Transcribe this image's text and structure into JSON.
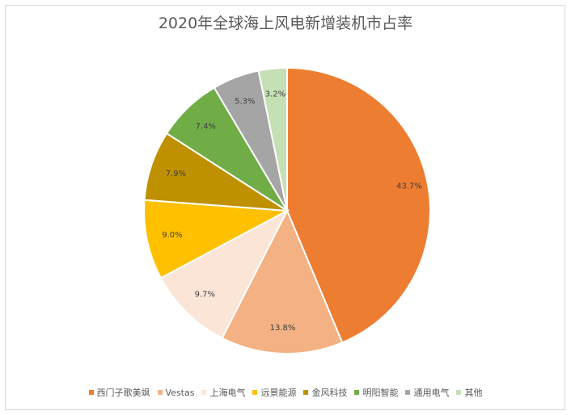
{
  "chart_data": {
    "type": "pie",
    "title": "2020年全球海上风电新增装机市占率",
    "categories": [
      "西门子歌美飒",
      "Vestas",
      "上海电气",
      "远景能源",
      "金风科技",
      "明阳智能",
      "通用电气",
      "其他"
    ],
    "values": [
      43.7,
      13.8,
      9.7,
      9.0,
      7.9,
      7.4,
      5.3,
      3.2
    ],
    "data_labels": [
      "43.7%",
      "13.8%",
      "9.7%",
      "9.0%",
      "7.9%",
      "7.4%",
      "5.3%",
      "3.2%"
    ],
    "colors": [
      "#ED7D31",
      "#F4B183",
      "#FBE5D6",
      "#FFC000",
      "#BF9000",
      "#70AD47",
      "#A5A5A5",
      "#C5E0B4"
    ],
    "legend_position": "bottom",
    "start_angle_deg": 0,
    "direction": "clockwise"
  }
}
